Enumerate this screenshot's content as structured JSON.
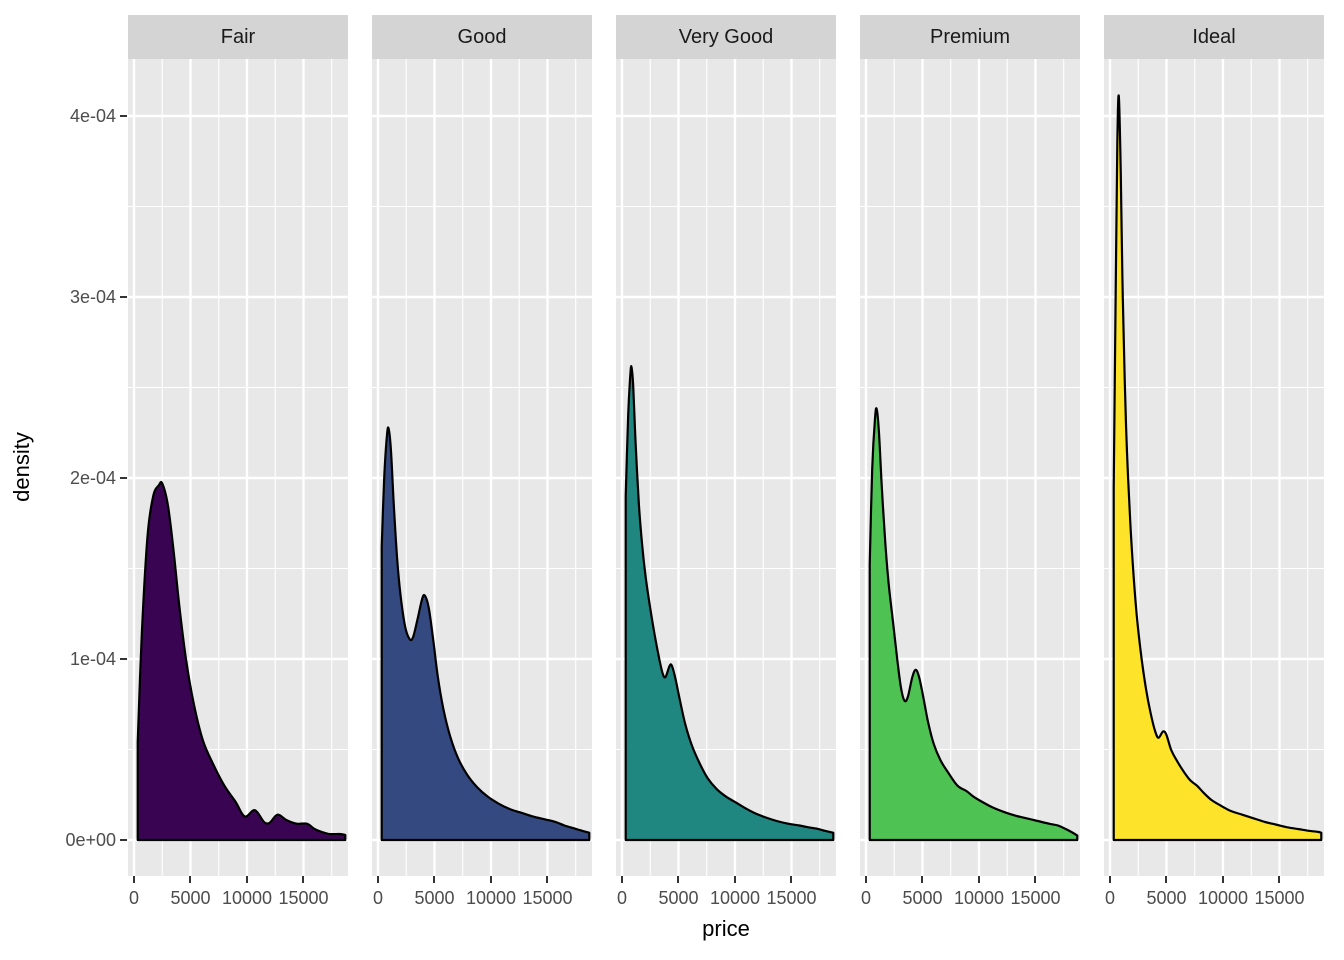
{
  "figure": {
    "kind": "faceted density plot",
    "x_title": "price",
    "y_title": "density"
  },
  "colors": {
    "background": "#ffffff",
    "panel_bg": "#e8e8e8",
    "strip_bg": "#d4d4d4",
    "grid": "#ffffff",
    "curve_outline": "#000000",
    "tick_text": "#4d4d4d",
    "axis_title_text": "#000000",
    "strip_text": "#1a1a1a",
    "tick_mark": "#333333"
  },
  "y_axis": {
    "ticks": [
      {
        "label": "0e+00",
        "value": 0
      },
      {
        "label": "1e-04",
        "value": 0.0001
      },
      {
        "label": "2e-04",
        "value": 0.0002
      },
      {
        "label": "3e-04",
        "value": 0.0003
      },
      {
        "label": "4e-04",
        "value": 0.0004
      }
    ]
  },
  "x_axis": {
    "ticks": [
      {
        "label": "0",
        "value": 0
      },
      {
        "label": "5000",
        "value": 5000
      },
      {
        "label": "10000",
        "value": 10000
      },
      {
        "label": "15000",
        "value": 15000
      }
    ],
    "minor_ticks": [
      2500,
      7500,
      12500,
      17500
    ]
  },
  "chart_data": {
    "type": "area",
    "subtype": "kernel-density",
    "facet_variable": "cut",
    "x_variable": "price",
    "y_variable": "density",
    "x_domain": [
      -530,
      18940
    ],
    "y_domain": [
      -7.7e-06,
      0.000433
    ],
    "x_ticks": [
      0,
      5000,
      10000,
      15000
    ],
    "y_ticks": [
      0,
      0.0001,
      0.0002,
      0.0003,
      0.0004
    ],
    "grid": true,
    "legend": "none",
    "facets": [
      {
        "label": "Fair",
        "slug": "fair",
        "fill": "#390452",
        "points": [
          [
            330,
            5.4e-05
          ],
          [
            700,
            0.000115
          ],
          [
            1200,
            0.000168
          ],
          [
            1700,
            0.00019
          ],
          [
            2200,
            0.000196
          ],
          [
            2500,
            0.000197
          ],
          [
            3000,
            0.000185
          ],
          [
            3500,
            0.00016
          ],
          [
            4000,
            0.00013
          ],
          [
            4600,
            0.0001
          ],
          [
            5300,
            7.5e-05
          ],
          [
            6100,
            5.5e-05
          ],
          [
            7000,
            4.2e-05
          ],
          [
            8000,
            3e-05
          ],
          [
            9000,
            2.1e-05
          ],
          [
            9800,
            1.3e-05
          ],
          [
            10700,
            1.65e-05
          ],
          [
            11500,
            1e-05
          ],
          [
            12000,
            9.5e-06
          ],
          [
            12700,
            1.4e-05
          ],
          [
            13500,
            1.1e-05
          ],
          [
            14400,
            9e-06
          ],
          [
            15300,
            9e-06
          ],
          [
            16000,
            6e-06
          ],
          [
            16600,
            4.5e-06
          ],
          [
            17300,
            3.3e-06
          ],
          [
            18200,
            3.3e-06
          ],
          [
            18700,
            2.8e-06
          ]
        ]
      },
      {
        "label": "Good",
        "slug": "good",
        "fill": "#34497F",
        "points": [
          [
            330,
            0.000162
          ],
          [
            550,
            0.0002
          ],
          [
            800,
            0.000224
          ],
          [
            950,
            0.000227
          ],
          [
            1150,
            0.000215
          ],
          [
            1400,
            0.000185
          ],
          [
            1700,
            0.000155
          ],
          [
            2000,
            0.000135
          ],
          [
            2400,
            0.000118
          ],
          [
            2800,
            0.000111
          ],
          [
            3100,
            0.000112
          ],
          [
            3500,
            0.000122
          ],
          [
            3900,
            0.000133
          ],
          [
            4150,
            0.000135
          ],
          [
            4500,
            0.000128
          ],
          [
            4900,
            0.00011
          ],
          [
            5300,
            9e-05
          ],
          [
            5800,
            7.2e-05
          ],
          [
            6400,
            5.7e-05
          ],
          [
            7100,
            4.5e-05
          ],
          [
            7900,
            3.6e-05
          ],
          [
            8800,
            2.9e-05
          ],
          [
            9700,
            2.4e-05
          ],
          [
            10700,
            2e-05
          ],
          [
            11700,
            1.7e-05
          ],
          [
            12700,
            1.5e-05
          ],
          [
            13700,
            1.3e-05
          ],
          [
            14700,
            1.15e-05
          ],
          [
            15700,
            1e-05
          ],
          [
            16500,
            8e-06
          ],
          [
            17300,
            6.5e-06
          ],
          [
            18100,
            5e-06
          ],
          [
            18700,
            4e-06
          ]
        ]
      },
      {
        "label": "Very Good",
        "slug": "very-good",
        "fill": "#1F8780",
        "points": [
          [
            330,
            0.00019
          ],
          [
            550,
            0.000235
          ],
          [
            750,
            0.000258
          ],
          [
            850,
            0.000261
          ],
          [
            1000,
            0.00025
          ],
          [
            1200,
            0.00022
          ],
          [
            1500,
            0.000185
          ],
          [
            1800,
            0.000162
          ],
          [
            2100,
            0.000145
          ],
          [
            2500,
            0.000128
          ],
          [
            2900,
            0.000113
          ],
          [
            3300,
            0.0001
          ],
          [
            3600,
            9.2e-05
          ],
          [
            3850,
            9e-05
          ],
          [
            4200,
            9.6e-05
          ],
          [
            4400,
            9.65e-05
          ],
          [
            4700,
            9e-05
          ],
          [
            5100,
            7.8e-05
          ],
          [
            5600,
            6.4e-05
          ],
          [
            6200,
            5.2e-05
          ],
          [
            6900,
            4.2e-05
          ],
          [
            7600,
            3.4e-05
          ],
          [
            8400,
            2.8e-05
          ],
          [
            9200,
            2.4e-05
          ],
          [
            10000,
            2.1e-05
          ],
          [
            10800,
            1.8e-05
          ],
          [
            11700,
            1.5e-05
          ],
          [
            12700,
            1.25e-05
          ],
          [
            13700,
            1.05e-05
          ],
          [
            14700,
            9e-06
          ],
          [
            15700,
            8e-06
          ],
          [
            16500,
            7e-06
          ],
          [
            17300,
            6.2e-06
          ],
          [
            18000,
            5e-06
          ],
          [
            18700,
            4e-06
          ]
        ]
      },
      {
        "label": "Premium",
        "slug": "premium",
        "fill": "#4FC254",
        "points": [
          [
            330,
            0.000152
          ],
          [
            550,
            0.000205
          ],
          [
            800,
            0.000233
          ],
          [
            950,
            0.000238
          ],
          [
            1150,
            0.000225
          ],
          [
            1400,
            0.000195
          ],
          [
            1700,
            0.000165
          ],
          [
            2000,
            0.000142
          ],
          [
            2400,
            0.00012
          ],
          [
            2800,
            9.8e-05
          ],
          [
            3100,
            8.4e-05
          ],
          [
            3400,
            7.7e-05
          ],
          [
            3700,
            7.9e-05
          ],
          [
            4100,
            9e-05
          ],
          [
            4400,
            9.4e-05
          ],
          [
            4700,
            9e-05
          ],
          [
            5100,
            7.8e-05
          ],
          [
            5500,
            6.5e-05
          ],
          [
            6000,
            5.3e-05
          ],
          [
            6600,
            4.4e-05
          ],
          [
            7300,
            3.7e-05
          ],
          [
            8100,
            3e-05
          ],
          [
            8900,
            2.7e-05
          ],
          [
            9500,
            2.4e-05
          ],
          [
            10300,
            2.1e-05
          ],
          [
            11200,
            1.8e-05
          ],
          [
            12200,
            1.55e-05
          ],
          [
            13200,
            1.35e-05
          ],
          [
            14200,
            1.2e-05
          ],
          [
            15200,
            1.05e-05
          ],
          [
            16200,
            9e-06
          ],
          [
            17000,
            8e-06
          ],
          [
            17700,
            6e-06
          ],
          [
            18300,
            4e-06
          ],
          [
            18700,
            2.5e-06
          ]
        ]
      },
      {
        "label": "Ideal",
        "slug": "ideal",
        "fill": "#FDE32A",
        "points": [
          [
            330,
            0.000195
          ],
          [
            500,
            0.0003
          ],
          [
            650,
            0.000385
          ],
          [
            780,
            0.000411
          ],
          [
            950,
            0.00037
          ],
          [
            1100,
            0.00031
          ],
          [
            1300,
            0.000255
          ],
          [
            1500,
            0.000215
          ],
          [
            1800,
            0.000175
          ],
          [
            2100,
            0.000145
          ],
          [
            2400,
            0.000122
          ],
          [
            2800,
            0.0001
          ],
          [
            3200,
            8.3e-05
          ],
          [
            3600,
            7e-05
          ],
          [
            4000,
            6e-05
          ],
          [
            4300,
            5.65e-05
          ],
          [
            4700,
            6e-05
          ],
          [
            5000,
            5.8e-05
          ],
          [
            5400,
            5e-05
          ],
          [
            5900,
            4.4e-05
          ],
          [
            6500,
            3.8e-05
          ],
          [
            7100,
            3.3e-05
          ],
          [
            7700,
            3e-05
          ],
          [
            8300,
            2.6e-05
          ],
          [
            9000,
            2.2e-05
          ],
          [
            9800,
            1.9e-05
          ],
          [
            10700,
            1.6e-05
          ],
          [
            11700,
            1.4e-05
          ],
          [
            12700,
            1.2e-05
          ],
          [
            13700,
            1e-05
          ],
          [
            14700,
            8.5e-06
          ],
          [
            15700,
            7e-06
          ],
          [
            16700,
            6e-06
          ],
          [
            17700,
            5e-06
          ],
          [
            18400,
            4.5e-06
          ],
          [
            18700,
            4e-06
          ]
        ]
      }
    ]
  }
}
